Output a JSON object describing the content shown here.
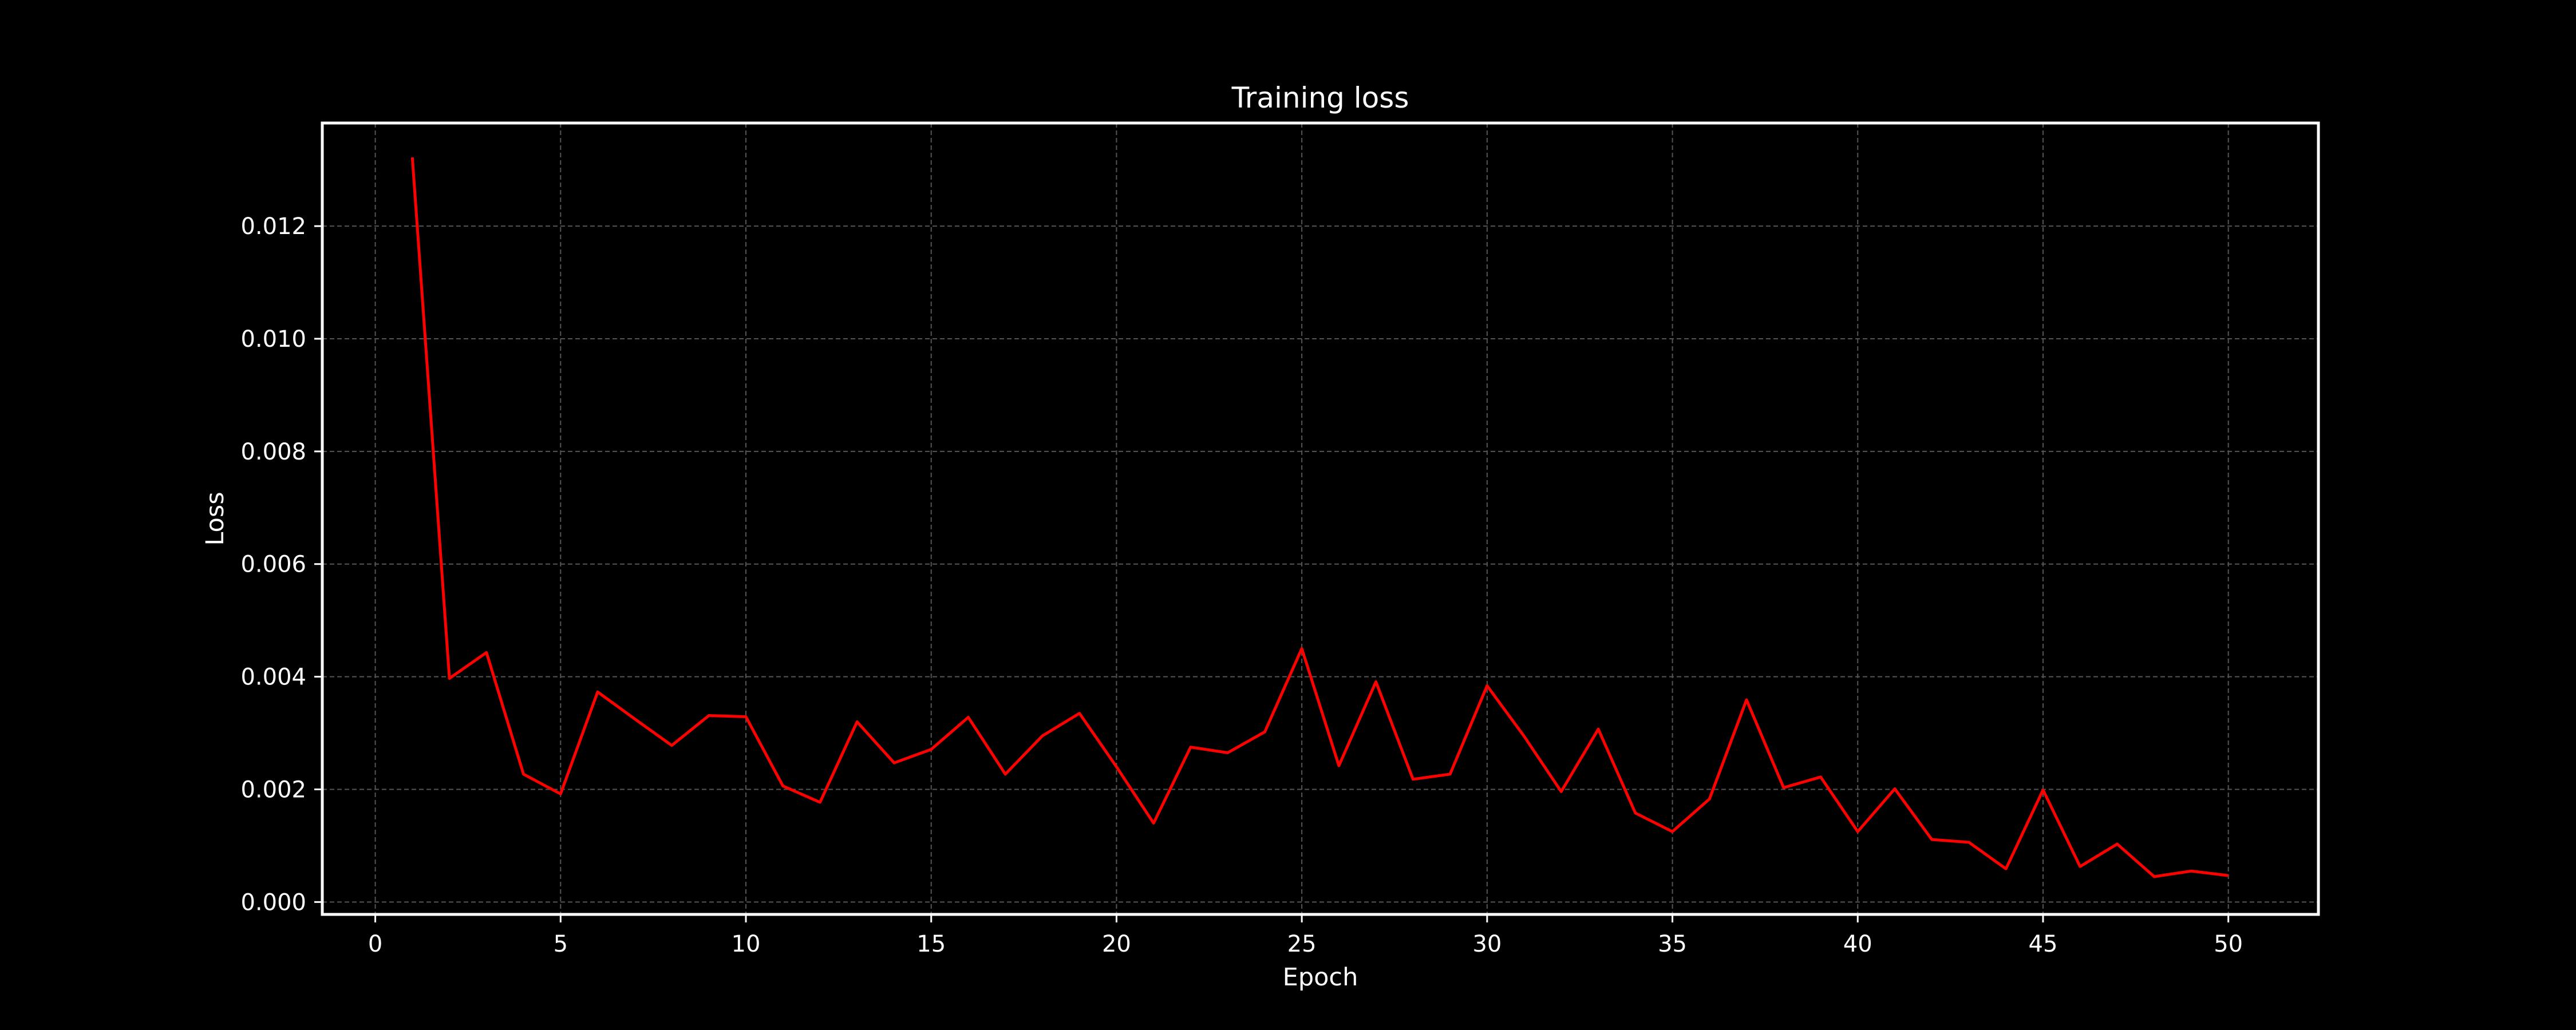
{
  "chart_data": {
    "type": "line",
    "title": "Training loss",
    "xlabel": "Epoch",
    "ylabel": "Loss",
    "xlim": [
      -1.43,
      52.43
    ],
    "ylim": [
      -0.00022,
      0.01383
    ],
    "x_ticks": [
      0,
      5,
      10,
      15,
      20,
      25,
      30,
      35,
      40,
      45,
      50
    ],
    "y_ticks": [
      0.0,
      0.002,
      0.004,
      0.006,
      0.008,
      0.01,
      0.012
    ],
    "y_tick_labels": [
      "0.000",
      "0.002",
      "0.004",
      "0.006",
      "0.008",
      "0.010",
      "0.012"
    ],
    "grid": true,
    "legend": "none",
    "colors": {
      "background": "#000000",
      "axes": "#ffffff",
      "text": "#ffffff",
      "grid": "#555555",
      "line": "#ff0000"
    },
    "series": [
      {
        "x": [
          1,
          2,
          3,
          4,
          5,
          6,
          7,
          8,
          9,
          10,
          11,
          12,
          13,
          14,
          15,
          16,
          17,
          18,
          19,
          20,
          21,
          22,
          23,
          24,
          25,
          26,
          27,
          28,
          29,
          30,
          31,
          32,
          33,
          34,
          35,
          36,
          37,
          38,
          39,
          40,
          41,
          42,
          43,
          44,
          45,
          46,
          47,
          48,
          49,
          50
        ],
        "values": [
          0.01322,
          0.00397,
          0.00443,
          0.00227,
          0.00192,
          0.00373,
          0.00325,
          0.00278,
          0.00331,
          0.00329,
          0.00206,
          0.00177,
          0.0032,
          0.00247,
          0.00271,
          0.00328,
          0.00227,
          0.00295,
          0.00335,
          0.0024,
          0.0014,
          0.00275,
          0.00265,
          0.00302,
          0.0045,
          0.00242,
          0.00391,
          0.00218,
          0.00227,
          0.00384,
          0.00294,
          0.00196,
          0.00307,
          0.00158,
          0.00125,
          0.00183,
          0.00359,
          0.00203,
          0.00222,
          0.00125,
          0.00201,
          0.00111,
          0.00106,
          0.00059,
          0.00199,
          0.00063,
          0.00103,
          0.00045,
          0.00055,
          0.00047
        ]
      }
    ]
  }
}
